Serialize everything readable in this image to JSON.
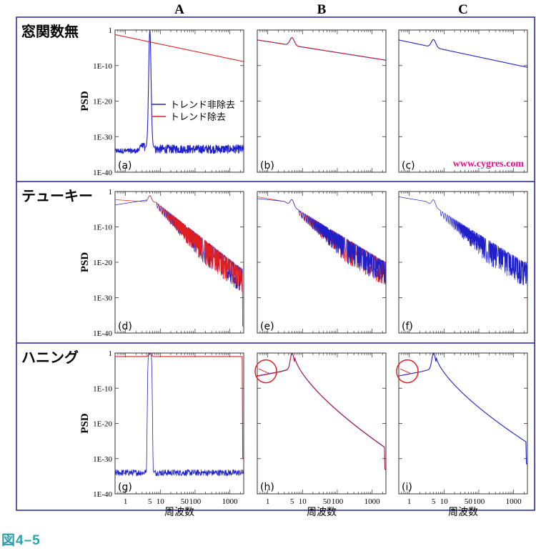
{
  "figure_label": "図4–5",
  "watermark": "www.cygres.com",
  "columns": [
    "A",
    "B",
    "C"
  ],
  "rows": [
    "窓関数無",
    "テューキー",
    "ハニング"
  ],
  "y_axis_label": "PSD",
  "x_axis_label": "周波数",
  "legend": {
    "non_detrended": "トレンド非除去",
    "detrended": "トレンド除去"
  },
  "colors": {
    "non_detrended": "#2020c8",
    "detrended": "#e02020",
    "border": "#2020b0",
    "watermark": "#e0108a",
    "caption": "#2aa0b0"
  },
  "chart_data": {
    "type": "line",
    "x_scale": "log",
    "y_scale": "log",
    "xlim": [
      0.5,
      2500
    ],
    "ylim": [
      1e-40,
      1
    ],
    "x_ticks": [
      {
        "value": 1,
        "label": "1"
      },
      {
        "value": 5,
        "label": "5"
      },
      {
        "value": 10,
        "label": "10"
      },
      {
        "value": 50,
        "label": "50"
      },
      {
        "value": 100,
        "label": "100"
      },
      {
        "value": 1000,
        "label": "1000"
      }
    ],
    "y_ticks": [
      {
        "value": 1,
        "label": "1"
      },
      {
        "value": 1e-10,
        "label": "1E-10"
      },
      {
        "value": 1e-20,
        "label": "1E-20"
      },
      {
        "value": 1e-30,
        "label": "1E-30"
      },
      {
        "value": 1e-40,
        "label": "1E-40"
      }
    ],
    "series": [
      "トレンド非除去",
      "トレンド除去"
    ],
    "panels": [
      {
        "id": "a",
        "label": "(a)",
        "row": 0,
        "col": 0,
        "note": "No window; sharp peak at f≈5 reaching 1; non-detrended floor ~1E-33; detrended line falls from ~1E-3 to ~1E-9"
      },
      {
        "id": "b",
        "label": "(b)",
        "row": 0,
        "col": 1,
        "note": "Peak at 5; both series overlap; ~1E-3 at 1 falling to ~1E-9 at 2000"
      },
      {
        "id": "c",
        "label": "(c)",
        "row": 0,
        "col": 2,
        "note": "Peak at 5; single curve falling to ~1E-11"
      },
      {
        "id": "d",
        "label": "(d)",
        "row": 1,
        "col": 0,
        "note": "Tukey; side-lobe ripple band from ~1E-12 to ~1E-22"
      },
      {
        "id": "e",
        "label": "(e)",
        "row": 1,
        "col": 1,
        "note": "Tukey; blue/red ripple band down to ~1E-21"
      },
      {
        "id": "f",
        "label": "(f)",
        "row": 1,
        "col": 2,
        "note": "Tukey; blue ripple band down to ~1E-22"
      },
      {
        "id": "g",
        "label": "(g)",
        "row": 2,
        "col": 0,
        "note": "Hanning; peak near 5; non-detrended floor ~1E-34; detrended line falls to ~1E-28"
      },
      {
        "id": "h",
        "label": "(h)",
        "row": 2,
        "col": 1,
        "note": "Hanning; smooth decay to ~1E-27; low-frequency region circled"
      },
      {
        "id": "i",
        "label": "(i)",
        "row": 2,
        "col": 2,
        "note": "Hanning; smooth decay to ~1E-25; low-frequency region circled"
      }
    ]
  }
}
